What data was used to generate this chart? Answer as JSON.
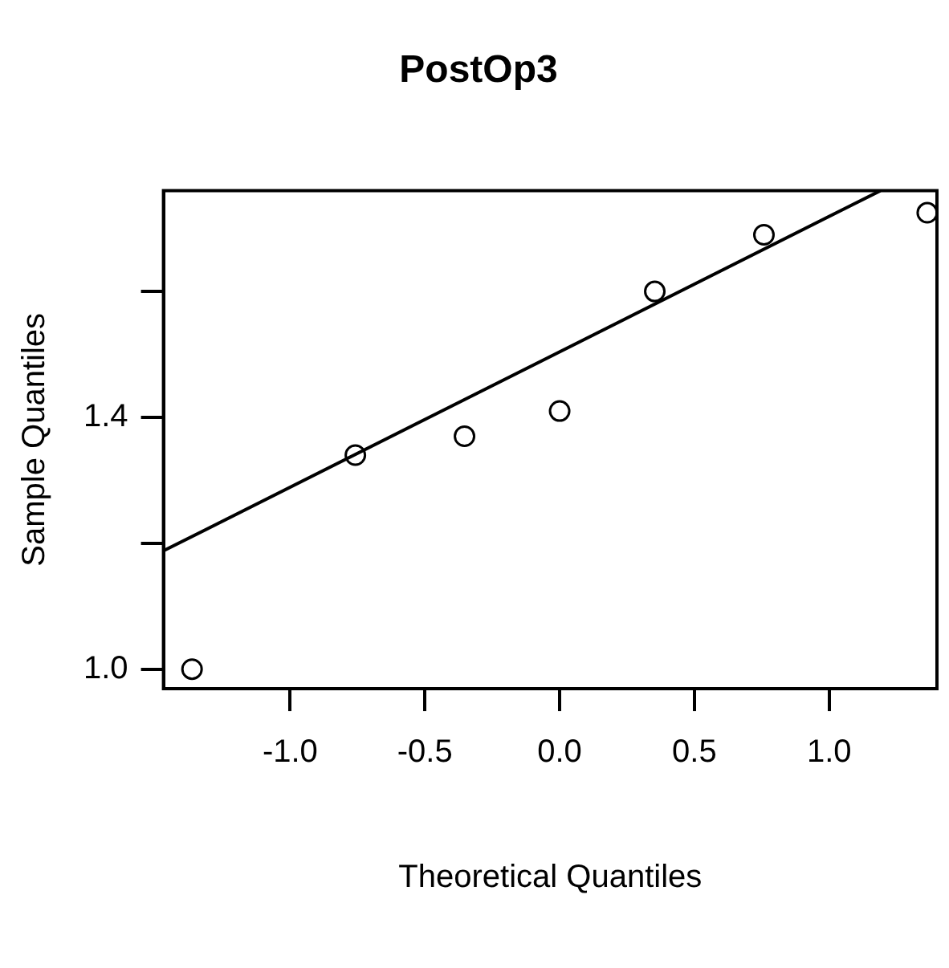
{
  "chart_data": {
    "type": "scatter",
    "title": "PostOp3",
    "xlabel": "Theoretical Quantiles",
    "ylabel": "Sample Quantiles",
    "x": [
      -1.364,
      -0.758,
      -0.353,
      0,
      0.353,
      0.758,
      1.364
    ],
    "series": [
      {
        "type": "scatter",
        "color": "#000000",
        "marker": "circle",
        "values": [
          1.0,
          1.34,
          1.37,
          1.41,
          1.6,
          1.69,
          1.725
        ]
      },
      {
        "type": "line",
        "color": "#000000",
        "x": [
          -1.47,
          1.19
        ],
        "values": [
          1.188,
          1.76
        ]
      }
    ],
    "xlim": [
      -1.47,
      1.4
    ],
    "xticks": [
      {
        "value": -1,
        "label": "-1.0"
      },
      -0.5,
      {
        "value": 0,
        "label": "0.0"
      },
      0.5,
      {
        "value": 1,
        "label": "1.0"
      }
    ],
    "ylim": [
      0.969,
      1.76
    ],
    "yticks": [
      {
        "value": 1.0,
        "label": "1.0"
      },
      {
        "value": 1.2,
        "label": null
      },
      {
        "value": 1.4,
        "label": "1.4"
      },
      {
        "value": 1.6,
        "label": null
      }
    ],
    "grid": false,
    "legend": false
  }
}
